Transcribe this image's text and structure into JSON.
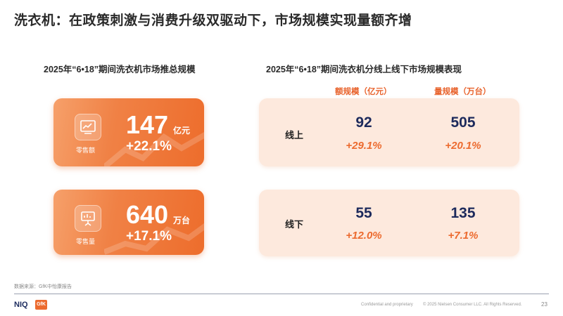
{
  "title": "洗衣机：在政策刺激与消费升级双驱动下，市场规模实现量额齐增",
  "left_section": {
    "subtitle": "2025年“6•18”期间洗衣机市场推总规模",
    "cards": [
      {
        "icon": "chart-trend-icon",
        "label": "零售额",
        "value": "147",
        "unit": "亿元",
        "growth": "+22.1%"
      },
      {
        "icon": "presentation-board-icon",
        "label": "零售量",
        "value": "640",
        "unit": "万台",
        "growth": "+17.1%"
      }
    ]
  },
  "right_section": {
    "subtitle": "2025年“6•18”期间洗衣机分线上线下市场规模表现",
    "columns": [
      "额规模（亿元）",
      "量规模（万台）"
    ],
    "rows": [
      {
        "label": "线上",
        "amount": "92",
        "amount_growth": "+29.1%",
        "volume": "505",
        "volume_growth": "+20.1%"
      },
      {
        "label": "线下",
        "amount": "55",
        "amount_growth": "+12.0%",
        "volume": "135",
        "volume_growth": "+7.1%"
      }
    ]
  },
  "source": "数据来源：GfK中怡康报告",
  "footer": {
    "brand1": "NIQ",
    "brand2": "GfK",
    "confidential": "Confidential and proprietary",
    "copyright": "© 2025 Nielsen Consumer LLC. All Rights Reserved.",
    "page_number": "23"
  },
  "colors": {
    "accent": "#ec6a2e",
    "value_text": "#1d2a5c",
    "panel_bg": "#fde9dd"
  }
}
